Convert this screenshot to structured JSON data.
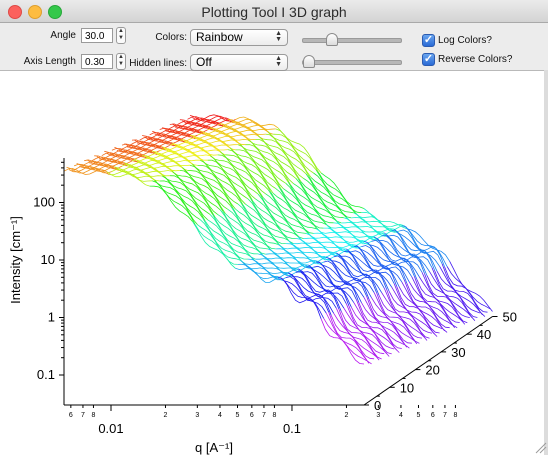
{
  "window": {
    "title": "Plotting Tool I 3D graph"
  },
  "controls": {
    "angle_label": "Angle",
    "angle_value": "30.0",
    "axis_length_label": "Axis Length",
    "axis_length_value": "0.30",
    "colors_label": "Colors:",
    "colors_value": "Rainbow",
    "hidden_lines_label": "Hidden lines:",
    "hidden_lines_value": "Off",
    "log_colors_label": "Log Colors?",
    "log_colors_checked": true,
    "reverse_colors_label": "Reverse Colors?",
    "reverse_colors_checked": true,
    "slider1_level": 0.28,
    "slider2_level": 0.0
  },
  "chart_data": {
    "type": "line",
    "subtype": "3d-waterfall",
    "ylabel": "Intensity [cm⁻¹]",
    "xlabel": "q [A⁻¹]",
    "y_scale": "log",
    "x_scale": "log",
    "y_ticks": [
      "100",
      "10",
      "1",
      "0.1"
    ],
    "x_major_ticks": [
      "0.01",
      "0.1"
    ],
    "x_minor_tick_labels": [
      "6",
      "7",
      "8",
      "2",
      "3",
      "4",
      "5",
      "6",
      "7",
      "8",
      "2",
      "3",
      "4",
      "5",
      "6",
      "7",
      "8"
    ],
    "z_ticks": [
      "0",
      "10",
      "20",
      "30",
      "40",
      "50"
    ],
    "z_range": [
      0,
      50
    ],
    "colormap": "rainbow",
    "series_count": 52
  }
}
